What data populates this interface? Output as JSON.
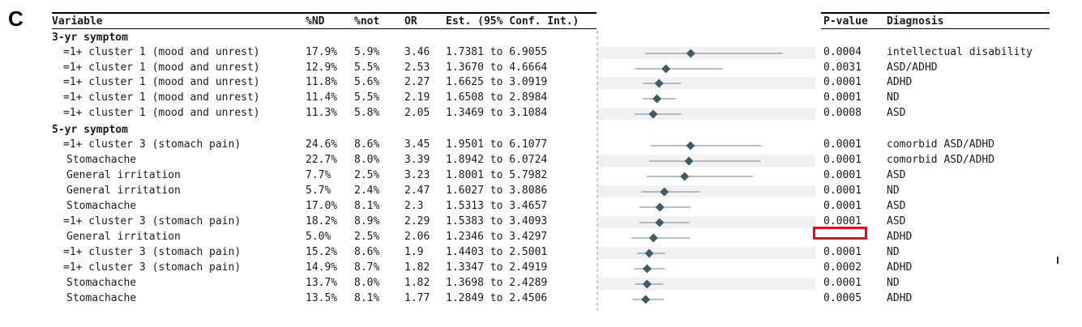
{
  "panel_label": "C",
  "headers": {
    "variable": "Variable",
    "nd": "%ND",
    "not": "%not",
    "or": "OR",
    "est": "Est. (95% Conf. Int.)",
    "pvalue": "P-value",
    "diagnosis": "Diagnosis"
  },
  "groups": {
    "g3": "3-yr symptom",
    "g5": "5-yr symptom"
  },
  "rows": [
    {
      "variable": "=1+ cluster 1 (mood and unrest)",
      "nd": "17.9%",
      "not": "5.9%",
      "or": "3.46",
      "est": "1.7381 to 6.9055",
      "pvalue": "0.0004",
      "diagnosis": "intellectual disability"
    },
    {
      "variable": "=1+ cluster 1 (mood and unrest)",
      "nd": "12.9%",
      "not": "5.5%",
      "or": "2.53",
      "est": "1.3670 to 4.6664",
      "pvalue": "0.0031",
      "diagnosis": "ASD/ADHD"
    },
    {
      "variable": "=1+ cluster 1 (mood and unrest)",
      "nd": "11.8%",
      "not": "5.6%",
      "or": "2.27",
      "est": "1.6625 to 3.0919",
      "pvalue": "0.0001",
      "diagnosis": "ADHD"
    },
    {
      "variable": "=1+ cluster 1 (mood and unrest)",
      "nd": "11.4%",
      "not": "5.5%",
      "or": "2.19",
      "est": "1.6508 to 2.8984",
      "pvalue": "0.0001",
      "diagnosis": "ND"
    },
    {
      "variable": "=1+ cluster 1 (mood and unrest)",
      "nd": "11.3%",
      "not": "5.8%",
      "or": "2.05",
      "est": "1.3469 to 3.1084",
      "pvalue": "0.0008",
      "diagnosis": "ASD"
    },
    {
      "variable": "=1+ cluster 3 (stomach pain)",
      "nd": "24.6%",
      "not": "8.6%",
      "or": "3.45",
      "est": "1.9501 to 6.1077",
      "pvalue": "0.0001",
      "diagnosis": "comorbid ASD/ADHD"
    },
    {
      "variable": "Stomachache",
      "nd": "22.7%",
      "not": "8.0%",
      "or": "3.39",
      "est": "1.8942 to 6.0724",
      "pvalue": "0.0001",
      "diagnosis": "comorbid ASD/ADHD"
    },
    {
      "variable": "General irritation",
      "nd": "7.7%",
      "not": "2.5%",
      "or": "3.23",
      "est": "1.8001 to 5.7982",
      "pvalue": "0.0001",
      "diagnosis": "ASD"
    },
    {
      "variable": "General irritation",
      "nd": "5.7%",
      "not": "2.4%",
      "or": "2.47",
      "est": "1.6027 to 3.8086",
      "pvalue": "0.0001",
      "diagnosis": "ND"
    },
    {
      "variable": "Stomachache",
      "nd": "17.0%",
      "not": "8.1%",
      "or": "2.3",
      "est": "1.5313 to 3.4657",
      "pvalue": "0.0001",
      "diagnosis": "ASD"
    },
    {
      "variable": "=1+ cluster 3 (stomach pain)",
      "nd": "18.2%",
      "not": "8.9%",
      "or": "2.29",
      "est": "1.5383 to 3.4093",
      "pvalue": "0.0001",
      "diagnosis": "ASD"
    },
    {
      "variable": "General irritation",
      "nd": "5.0%",
      "not": "2.5%",
      "or": "2.06",
      "est": "1.2346 to 3.4297",
      "pvalue": "",
      "diagnosis": "ADHD"
    },
    {
      "variable": "=1+ cluster 3 (stomach pain)",
      "nd": "15.2%",
      "not": "8.6%",
      "or": "1.9",
      "est": "1.4403 to 2.5001",
      "pvalue": "0.0001",
      "diagnosis": "ND"
    },
    {
      "variable": "=1+ cluster 3 (stomach pain)",
      "nd": "14.9%",
      "not": "8.7%",
      "or": "1.82",
      "est": "1.3347 to 2.4919",
      "pvalue": "0.0002",
      "diagnosis": "ADHD"
    },
    {
      "variable": "Stomachache",
      "nd": "13.7%",
      "not": "8.0%",
      "or": "1.82",
      "est": "1.3698 to 2.4289",
      "pvalue": "0.0001",
      "diagnosis": "ND"
    },
    {
      "variable": "Stomachache",
      "nd": "13.5%",
      "not": "8.1%",
      "or": "1.77",
      "est": "1.2849 to 2.4506",
      "pvalue": "0.0005",
      "diagnosis": "ADHD"
    }
  ],
  "colors": {
    "marker": "#3f5c66",
    "ci_line": "#8a9aa0",
    "row_shade": "#f1f1f1",
    "highlight_box": "#e8101a"
  },
  "chart_data": {
    "type": "forest",
    "xlabel": "",
    "ylabel": "",
    "axis_scale": "linear",
    "xlim": [
      0.5,
      7.5
    ],
    "reference_line": 1,
    "series": [
      {
        "values": [
          3.46,
          2.53,
          2.27,
          2.19,
          2.05,
          3.45,
          3.39,
          3.23,
          2.47,
          2.3,
          2.29,
          2.06,
          1.9,
          1.82,
          1.82,
          1.77
        ]
      }
    ],
    "ci_low": [
      1.7381,
      1.367,
      1.6625,
      1.6508,
      1.3469,
      1.9501,
      1.8942,
      1.8001,
      1.6027,
      1.5313,
      1.5383,
      1.2346,
      1.4403,
      1.3347,
      1.3698,
      1.2849
    ],
    "ci_high": [
      6.9055,
      4.6664,
      3.0919,
      2.8984,
      3.1084,
      6.1077,
      6.0724,
      5.7982,
      3.8086,
      3.4657,
      3.4093,
      3.4297,
      2.5001,
      2.4919,
      2.4289,
      2.4506
    ]
  }
}
